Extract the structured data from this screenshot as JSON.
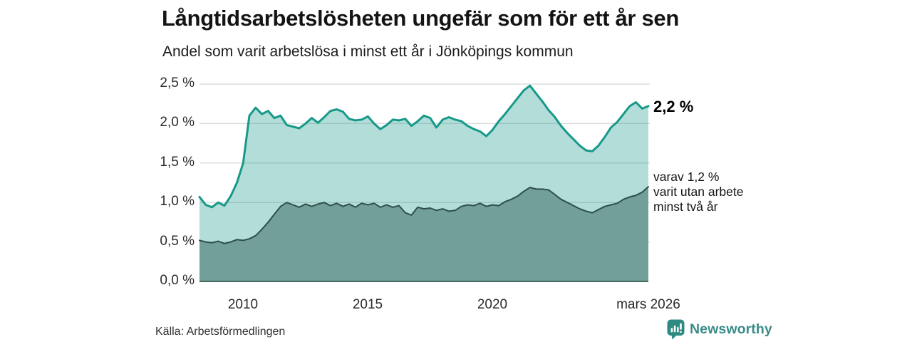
{
  "header": {
    "title": "Långtidsarbetslösheten ungefär som för ett år sen",
    "subtitle": "Andel som varit arbetslösa i minst ett år i Jönköpings kommun"
  },
  "chart_data": {
    "type": "area",
    "title": "Långtidsarbetslösheten ungefär som för ett år sen",
    "subtitle": "Andel som varit arbetslösa i minst ett år i Jönköpings kommun",
    "unit": "%",
    "grid": true,
    "gridline_color": "#d9dedd",
    "baseline_color": "#47665f",
    "x_range": [
      2008.25,
      2026.25
    ],
    "x_axis": {
      "ticks": [
        {
          "t": 2010,
          "label": "2010"
        },
        {
          "t": 2015,
          "label": "2015"
        },
        {
          "t": 2020,
          "label": "2020"
        },
        {
          "t": 2026.25,
          "label": "mars 2026"
        }
      ]
    },
    "y_axis": {
      "range": [
        0,
        2.5
      ],
      "ticks": [
        {
          "v": 0.0,
          "label": "0,0 %"
        },
        {
          "v": 0.5,
          "label": "0,5 %"
        },
        {
          "v": 1.0,
          "label": "1,0 %"
        },
        {
          "v": 1.5,
          "label": "1,5 %"
        },
        {
          "v": 2.0,
          "label": "2,0 %"
        },
        {
          "v": 2.5,
          "label": "2,5 %"
        }
      ]
    },
    "x": [
      2008.25,
      2008.5,
      2008.75,
      2009,
      2009.25,
      2009.5,
      2009.75,
      2010,
      2010.25,
      2010.5,
      2010.75,
      2011,
      2011.25,
      2011.5,
      2011.75,
      2012,
      2012.25,
      2012.5,
      2012.75,
      2013,
      2013.25,
      2013.5,
      2013.75,
      2014,
      2014.25,
      2014.5,
      2014.75,
      2015,
      2015.25,
      2015.5,
      2015.75,
      2016,
      2016.25,
      2016.5,
      2016.75,
      2017,
      2017.25,
      2017.5,
      2017.75,
      2018,
      2018.25,
      2018.5,
      2018.75,
      2019,
      2019.25,
      2019.5,
      2019.75,
      2020,
      2020.25,
      2020.5,
      2020.75,
      2021,
      2021.25,
      2021.5,
      2021.75,
      2022,
      2022.25,
      2022.5,
      2022.75,
      2023,
      2023.25,
      2023.5,
      2023.75,
      2024,
      2024.25,
      2024.5,
      2024.75,
      2025,
      2025.25,
      2025.5,
      2025.75,
      2026,
      2026.25
    ],
    "series": [
      {
        "name": "Andel som varit arbetslösa i minst ett år",
        "line_color": "#17998a",
        "fill_color": "rgba(23,153,138,0.33)",
        "fill_opacity": 1,
        "line_width": 3,
        "end_value_label": "2,2 %",
        "values": [
          1.07,
          0.97,
          0.94,
          1.0,
          0.96,
          1.08,
          1.25,
          1.5,
          2.1,
          2.2,
          2.12,
          2.16,
          2.07,
          2.1,
          1.98,
          1.96,
          1.94,
          2.0,
          2.07,
          2.01,
          2.08,
          2.16,
          2.18,
          2.15,
          2.06,
          2.04,
          2.05,
          2.09,
          2.0,
          1.93,
          1.98,
          2.05,
          2.04,
          2.06,
          1.97,
          2.03,
          2.1,
          2.07,
          1.95,
          2.05,
          2.08,
          2.05,
          2.03,
          1.97,
          1.93,
          1.9,
          1.84,
          1.92,
          2.03,
          2.12,
          2.22,
          2.32,
          2.42,
          2.48,
          2.38,
          2.28,
          2.17,
          2.08,
          1.97,
          1.88,
          1.8,
          1.72,
          1.66,
          1.65,
          1.72,
          1.83,
          1.95,
          2.02,
          2.12,
          2.22,
          2.27,
          2.19,
          2.22
        ]
      },
      {
        "name": "varav utan arbete minst två år",
        "line_color": "#2e4f4a",
        "fill_color": "#6f9c96",
        "fill_opacity": 0.96,
        "line_width": 2,
        "end_value_label": "1,2 %",
        "values": [
          0.52,
          0.5,
          0.49,
          0.51,
          0.48,
          0.5,
          0.53,
          0.52,
          0.54,
          0.58,
          0.66,
          0.75,
          0.85,
          0.95,
          1.0,
          0.97,
          0.94,
          0.98,
          0.95,
          0.98,
          1.0,
          0.96,
          0.99,
          0.95,
          0.98,
          0.94,
          0.99,
          0.97,
          0.99,
          0.94,
          0.97,
          0.94,
          0.96,
          0.87,
          0.84,
          0.94,
          0.92,
          0.93,
          0.9,
          0.92,
          0.89,
          0.9,
          0.95,
          0.97,
          0.96,
          0.99,
          0.95,
          0.97,
          0.96,
          1.01,
          1.04,
          1.08,
          1.14,
          1.19,
          1.17,
          1.17,
          1.16,
          1.1,
          1.04,
          1.0,
          0.96,
          0.92,
          0.89,
          0.87,
          0.91,
          0.95,
          0.97,
          0.99,
          1.04,
          1.07,
          1.09,
          1.13,
          1.2
        ]
      }
    ],
    "annotations": {
      "end_label": "2,2 %",
      "wrap_lines": [
        "varav 1,2 %",
        "varit utan arbete",
        "minst två år"
      ]
    }
  },
  "footer": {
    "source": "Källa: Arbetsförmedlingen",
    "brand": "Newsworthy",
    "brand_color": "#3a8b88",
    "brand_icon": "bar-chart-speech-bubble"
  }
}
